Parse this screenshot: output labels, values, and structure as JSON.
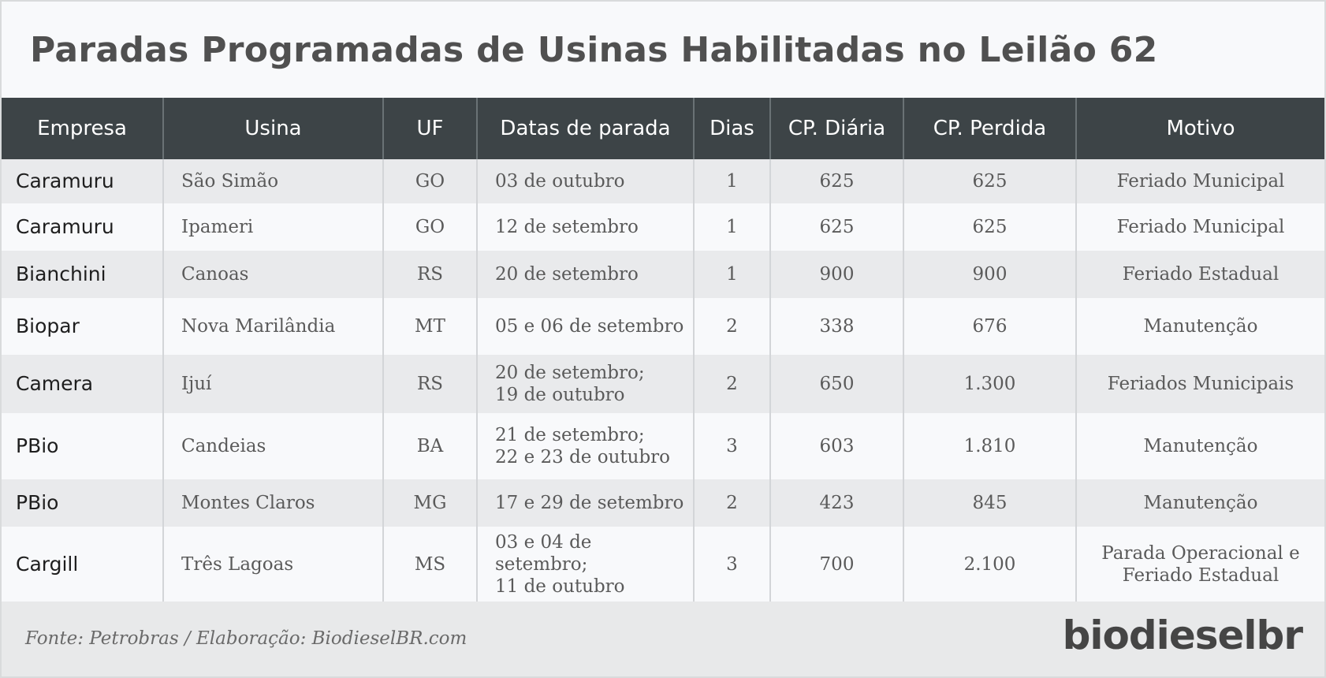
{
  "title": "Paradas Programadas de Usinas Habilitadas no Leilão 62",
  "headers": {
    "empresa": "Empresa",
    "usina": "Usina",
    "uf": "UF",
    "datas": "Datas de parada",
    "dias": "Dias",
    "cp_diaria": "CP. Diária",
    "cp_perdida": "CP. Perdida",
    "motivo": "Motivo"
  },
  "rows": [
    {
      "empresa": "Caramuru",
      "usina": "São Simão",
      "uf": "GO",
      "datas_l1": "03 de outubro",
      "datas_l2": "",
      "dias": "1",
      "cp_diaria": "625",
      "cp_perdida": "625",
      "motivo_l1": "Feriado Municipal",
      "motivo_l2": ""
    },
    {
      "empresa": "Caramuru",
      "usina": "Ipameri",
      "uf": "GO",
      "datas_l1": "12 de setembro",
      "datas_l2": "",
      "dias": "1",
      "cp_diaria": "625",
      "cp_perdida": "625",
      "motivo_l1": "Feriado Municipal",
      "motivo_l2": ""
    },
    {
      "empresa": "Bianchini",
      "usina": "Canoas",
      "uf": "RS",
      "datas_l1": "20 de setembro",
      "datas_l2": "",
      "dias": "1",
      "cp_diaria": "900",
      "cp_perdida": "900",
      "motivo_l1": "Feriado Estadual",
      "motivo_l2": ""
    },
    {
      "empresa": "Biopar",
      "usina": "Nova Marilândia",
      "uf": "MT",
      "datas_l1": "05 e 06 de setembro",
      "datas_l2": "",
      "dias": "2",
      "cp_diaria": "338",
      "cp_perdida": "676",
      "motivo_l1": "Manutenção",
      "motivo_l2": ""
    },
    {
      "empresa": "Camera",
      "usina": "Ijuí",
      "uf": "RS",
      "datas_l1": "20 de setembro;",
      "datas_l2": "19 de outubro",
      "dias": "2",
      "cp_diaria": "650",
      "cp_perdida": "1.300",
      "motivo_l1": "Feriados Municipais",
      "motivo_l2": ""
    },
    {
      "empresa": "PBio",
      "usina": "Candeias",
      "uf": "BA",
      "datas_l1": "21 de setembro;",
      "datas_l2": "22 e 23 de outubro",
      "dias": "3",
      "cp_diaria": "603",
      "cp_perdida": "1.810",
      "motivo_l1": "Manutenção",
      "motivo_l2": ""
    },
    {
      "empresa": "PBio",
      "usina": "Montes Claros",
      "uf": "MG",
      "datas_l1": "17 e 29 de setembro",
      "datas_l2": "",
      "dias": "2",
      "cp_diaria": "423",
      "cp_perdida": "845",
      "motivo_l1": "Manutenção",
      "motivo_l2": ""
    },
    {
      "empresa": "Cargill",
      "usina": "Três Lagoas",
      "uf": "MS",
      "datas_l1": "03 e 04 de setembro;",
      "datas_l2": "11 de outubro",
      "dias": "3",
      "cp_diaria": "700",
      "cp_perdida": "2.100",
      "motivo_l1": "Parada Operacional e",
      "motivo_l2": "Feriado Estadual"
    }
  ],
  "footer": {
    "source": "Fonte: Petrobras / Elaboração: BiodieselBR.com",
    "logo": "biodieselbr"
  }
}
